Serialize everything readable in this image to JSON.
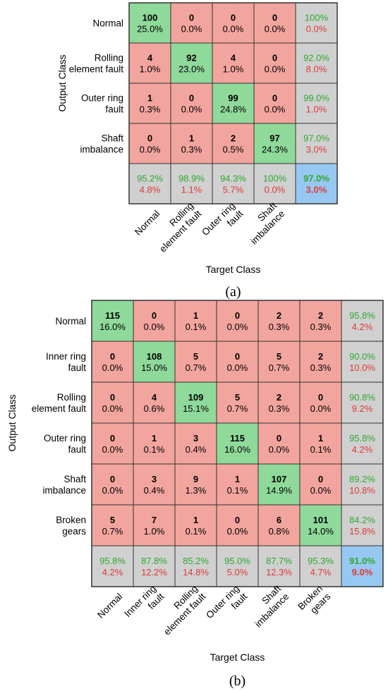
{
  "figure": {
    "colors": {
      "correct": "#8fd99a",
      "incorrect": "#f2a59e",
      "summary": "#d0d0d0",
      "overall": "#97c8f2",
      "border": "#333333",
      "text_count": "#000000",
      "text_good": "#2fa82f",
      "text_bad": "#e03a3a"
    },
    "chart_data": [
      {
        "type": "heatmap",
        "subtype": "confusion-matrix",
        "caption": "(a)",
        "xlabel": "Target Class",
        "ylabel": "Output Class",
        "row_labels": [
          [
            "Normal"
          ],
          [
            "Rolling",
            "element fault"
          ],
          [
            "Outer ring",
            "fault"
          ],
          [
            "Shaft",
            "imbalance"
          ]
        ],
        "col_labels": [
          [
            "Normal"
          ],
          [
            "Rolling",
            "element fault"
          ],
          [
            "Outer ring",
            "fault"
          ],
          [
            "Shaft",
            "imbalance"
          ]
        ],
        "counts": [
          [
            100,
            0,
            0,
            0
          ],
          [
            4,
            92,
            4,
            0
          ],
          [
            1,
            0,
            99,
            0
          ],
          [
            0,
            1,
            2,
            97
          ]
        ],
        "percents": [
          [
            "25.0%",
            "0.0%",
            "0.0%",
            "0.0%"
          ],
          [
            "1.0%",
            "23.0%",
            "1.0%",
            "0.0%"
          ],
          [
            "0.3%",
            "0.0%",
            "24.8%",
            "0.0%"
          ],
          [
            "0.0%",
            "0.3%",
            "0.5%",
            "24.3%"
          ]
        ],
        "row_summary": [
          [
            "100%",
            "0.0%"
          ],
          [
            "92.0%",
            "8.0%"
          ],
          [
            "99.0%",
            "1.0%"
          ],
          [
            "97.0%",
            "3.0%"
          ]
        ],
        "col_summary": [
          [
            "95.2%",
            "4.8%"
          ],
          [
            "98.9%",
            "1.1%"
          ],
          [
            "94.3%",
            "5.7%"
          ],
          [
            "100%",
            "0.0%"
          ]
        ],
        "overall": [
          "97.0%",
          "3.0%"
        ]
      },
      {
        "type": "heatmap",
        "subtype": "confusion-matrix",
        "caption": "(b)",
        "xlabel": "Target Class",
        "ylabel": "Output Class",
        "row_labels": [
          [
            "Normal"
          ],
          [
            "Inner ring",
            "fault"
          ],
          [
            "Rolling",
            "element fault"
          ],
          [
            "Outer ring",
            "fault"
          ],
          [
            "Shaft",
            "imbalance"
          ],
          [
            "Broken",
            "gears"
          ]
        ],
        "col_labels": [
          [
            "Normal"
          ],
          [
            "Inner ring",
            "fault"
          ],
          [
            "Rolling",
            "element fault"
          ],
          [
            "Outer ring",
            "fault"
          ],
          [
            "Shaft",
            "imbalance"
          ],
          [
            "Broken",
            "gears"
          ]
        ],
        "counts": [
          [
            115,
            0,
            1,
            0,
            2,
            2
          ],
          [
            0,
            108,
            5,
            0,
            5,
            2
          ],
          [
            0,
            4,
            109,
            5,
            2,
            0
          ],
          [
            0,
            1,
            3,
            115,
            0,
            1
          ],
          [
            0,
            3,
            9,
            1,
            107,
            0
          ],
          [
            5,
            7,
            1,
            0,
            6,
            101
          ]
        ],
        "percents": [
          [
            "16.0%",
            "0.0%",
            "0.1%",
            "0.0%",
            "0.3%",
            "0.3%"
          ],
          [
            "0.0%",
            "15.0%",
            "0.7%",
            "0.0%",
            "0.7%",
            "0.3%"
          ],
          [
            "0.0%",
            "0.6%",
            "15.1%",
            "0.7%",
            "0.3%",
            "0.0%"
          ],
          [
            "0.0%",
            "0.1%",
            "0.4%",
            "16.0%",
            "0.0%",
            "0.1%"
          ],
          [
            "0.0%",
            "0.4%",
            "1.3%",
            "0.1%",
            "14.9%",
            "0.0%"
          ],
          [
            "0.7%",
            "1.0%",
            "0.1%",
            "0.0%",
            "0.8%",
            "14.0%"
          ]
        ],
        "row_summary": [
          [
            "95.8%",
            "4.2%"
          ],
          [
            "90.0%",
            "10.0%"
          ],
          [
            "90.8%",
            "9.2%"
          ],
          [
            "95.8%",
            "4.2%"
          ],
          [
            "89.2%",
            "10.8%"
          ],
          [
            "84.2%",
            "15.8%"
          ]
        ],
        "col_summary": [
          [
            "95.8%",
            "4.2%"
          ],
          [
            "87.8%",
            "12.2%"
          ],
          [
            "85.2%",
            "14.8%"
          ],
          [
            "95.0%",
            "5.0%"
          ],
          [
            "87.7%",
            "12.3%"
          ],
          [
            "95.3%",
            "4.7%"
          ]
        ],
        "overall": [
          "91.0%",
          "9.0%"
        ]
      }
    ]
  }
}
